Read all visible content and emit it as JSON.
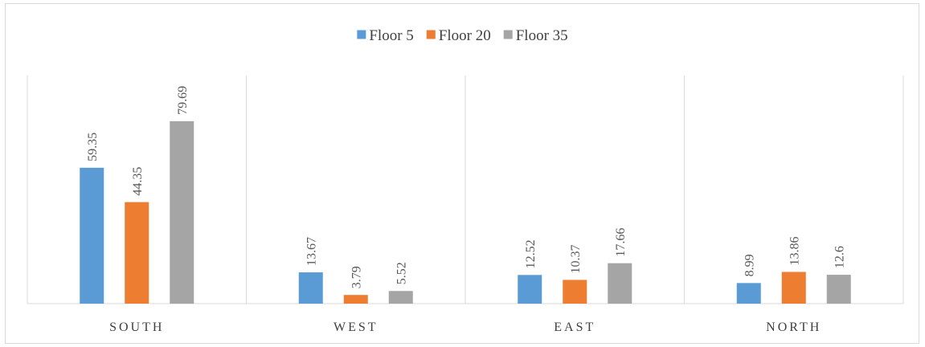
{
  "chart_data": {
    "type": "bar",
    "categories": [
      "SOUTH",
      "WEST",
      "EAST",
      "NORTH"
    ],
    "series": [
      {
        "name": "Floor 5",
        "color": "#5b9bd5",
        "values": [
          59.35,
          13.67,
          12.52,
          8.99
        ]
      },
      {
        "name": "Floor 20",
        "color": "#ed7d31",
        "values": [
          44.35,
          3.79,
          10.37,
          13.86
        ]
      },
      {
        "name": "Floor 35",
        "color": "#a5a5a5",
        "values": [
          79.69,
          5.52,
          17.66,
          12.6
        ]
      }
    ],
    "data_labels": [
      [
        "59.35",
        "44.35",
        "79.69"
      ],
      [
        "13.67",
        "3.79",
        "5.52"
      ],
      [
        "12.52",
        "10.37",
        "17.66"
      ],
      [
        "8.99",
        "13.86",
        "12.6"
      ]
    ],
    "legend_position": "top-center",
    "ylim": [
      0,
      100
    ],
    "grid": "vertical category separators"
  }
}
